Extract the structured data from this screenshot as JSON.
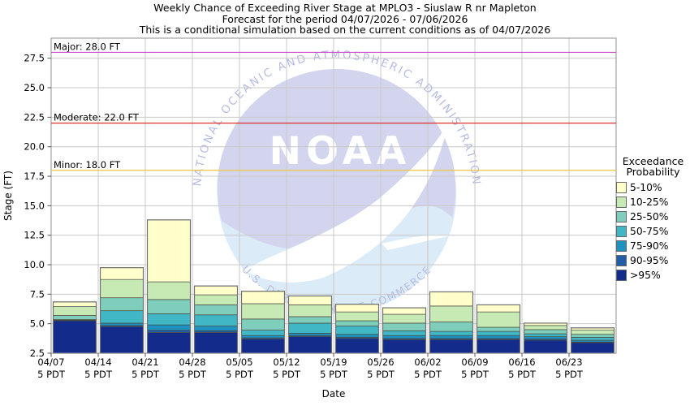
{
  "title": {
    "line1": "Weekly Chance of Exceeding River Stage at MPLO3 - Siuslaw R nr Mapleton",
    "line2": "Forecast for the period 04/07/2026 - 07/06/2026",
    "line3": "This is a conditional simulation based on the current conditions as of 04/07/2026"
  },
  "axes": {
    "y_label": "Stage (FT)",
    "x_label": "Date",
    "y_ticks": [
      "2.5",
      "5.0",
      "7.5",
      "10.0",
      "12.5",
      "15.0",
      "17.5",
      "20.0",
      "22.5",
      "25.0",
      "27.5"
    ],
    "x_tick_line2": "5 PDT"
  },
  "thresholds": [
    {
      "name": "Major",
      "label": "Major: 28.0 FT",
      "value": 28.0,
      "color": "#cb4acb"
    },
    {
      "name": "Moderate",
      "label": "Moderate: 22.0 FT",
      "value": 22.0,
      "color": "#db3232"
    },
    {
      "name": "Minor",
      "label": "Minor: 18.0 FT",
      "value": 18.0,
      "color": "#edc63c"
    }
  ],
  "legend": {
    "title_line1": "Exceedance",
    "title_line2": "Probability",
    "entries": [
      {
        "label": "5-10%",
        "color": "#FFFFCC"
      },
      {
        "label": "10-25%",
        "color": "#C7E9B4"
      },
      {
        "label": "25-50%",
        "color": "#7FCDBB"
      },
      {
        "label": "50-75%",
        "color": "#41B6C4"
      },
      {
        "label": "75-90%",
        "color": "#1D91C0"
      },
      {
        "label": "90-95%",
        "color": "#225EA8"
      },
      {
        "label": ">95%",
        "color": "#132C8C"
      }
    ]
  },
  "watermark": {
    "logo_text": "NOAA",
    "top_arc_text": "NATIONAL OCEANIC AND ATMOSPHERIC ADMINISTRATION",
    "bottom_arc_text": "U.S. DEPARTMENT OF COMMERCE",
    "sky_color": "#d3d5ef",
    "sea_color": "#dcebf8",
    "arc_text_color": "#b6bbe3"
  },
  "chart_data": {
    "type": "stacked_bar",
    "title": "Weekly Chance of Exceeding River Stage at MPLO3 - Siuslaw R nr Mapleton",
    "xlabel": "Date",
    "ylabel": "Stage (FT)",
    "ylim": [
      2.5,
      29.2
    ],
    "grid": true,
    "legend_position": "right",
    "base": 2.5,
    "categories": [
      "04/07",
      "04/14",
      "04/21",
      "04/28",
      "05/05",
      "05/12",
      "05/19",
      "05/26",
      "06/02",
      "06/09",
      "06/16",
      "06/23"
    ],
    "series": [
      {
        "name": "5-10%",
        "color": "#FFFFCC",
        "tops": [
          6.85,
          9.75,
          13.8,
          8.2,
          7.75,
          7.35,
          6.65,
          6.35,
          7.7,
          6.6,
          5.05,
          4.65
        ]
      },
      {
        "name": "10-25%",
        "color": "#C7E9B4",
        "tops": [
          6.45,
          8.75,
          8.55,
          7.45,
          6.7,
          6.6,
          6.0,
          5.8,
          6.5,
          6.0,
          4.85,
          4.45
        ]
      },
      {
        "name": "25-50%",
        "color": "#7FCDBB",
        "tops": [
          5.7,
          7.2,
          7.05,
          6.6,
          5.4,
          5.6,
          5.25,
          5.05,
          5.15,
          4.7,
          4.5,
          4.1
        ]
      },
      {
        "name": "50-75%",
        "color": "#41B6C4",
        "tops": [
          5.35,
          6.1,
          5.85,
          5.75,
          4.45,
          5.05,
          4.8,
          4.4,
          4.35,
          4.35,
          4.15,
          3.85
        ]
      },
      {
        "name": "75-90%",
        "color": "#1D91C0",
        "tops": [
          5.3,
          5.05,
          4.9,
          4.8,
          4.0,
          4.2,
          4.1,
          4.0,
          4.0,
          4.0,
          3.9,
          3.6
        ]
      },
      {
        "name": "90-95%",
        "color": "#225EA8",
        "tops": [
          5.3,
          4.85,
          4.45,
          4.4,
          3.8,
          4.0,
          3.85,
          3.75,
          3.75,
          3.75,
          3.7,
          3.45
        ]
      },
      {
        "name": ">95%",
        "color": "#132C8C",
        "tops": [
          5.25,
          4.75,
          4.25,
          4.25,
          3.7,
          3.9,
          3.75,
          3.65,
          3.65,
          3.65,
          3.6,
          3.4
        ]
      }
    ]
  }
}
